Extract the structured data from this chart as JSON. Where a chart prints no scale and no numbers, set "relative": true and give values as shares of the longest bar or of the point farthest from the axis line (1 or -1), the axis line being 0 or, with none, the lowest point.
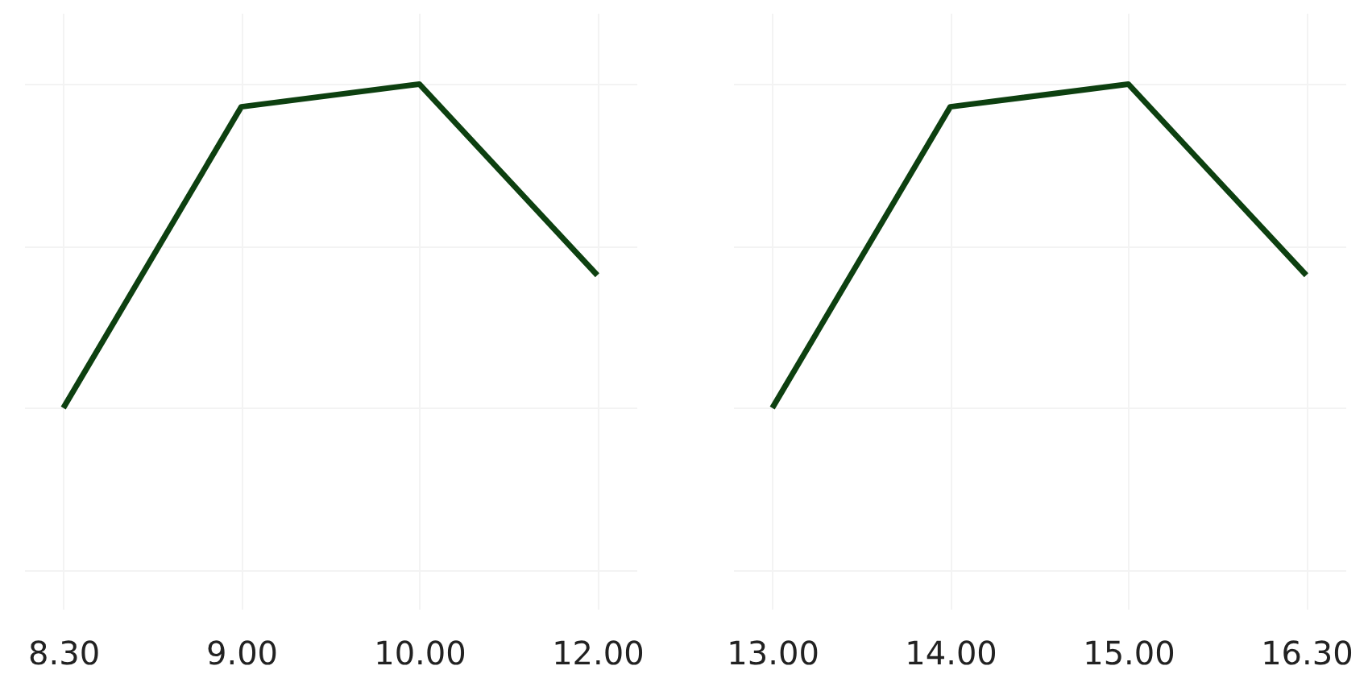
{
  "chart_data": [
    {
      "type": "line",
      "categories": [
        "8.30",
        "9.00",
        "10.00",
        "12.00"
      ],
      "relative": true,
      "grid": true,
      "series": [
        {
          "color": "#0d4010",
          "values": [
            0,
            0.93,
            1,
            0.41
          ]
        }
      ]
    },
    {
      "type": "line",
      "categories": [
        "13.00",
        "14.00",
        "15.00",
        "16.30"
      ],
      "relative": true,
      "grid": true,
      "series": [
        {
          "color": "#0d4010",
          "values": [
            0,
            0.93,
            1,
            0.41
          ]
        }
      ]
    }
  ]
}
